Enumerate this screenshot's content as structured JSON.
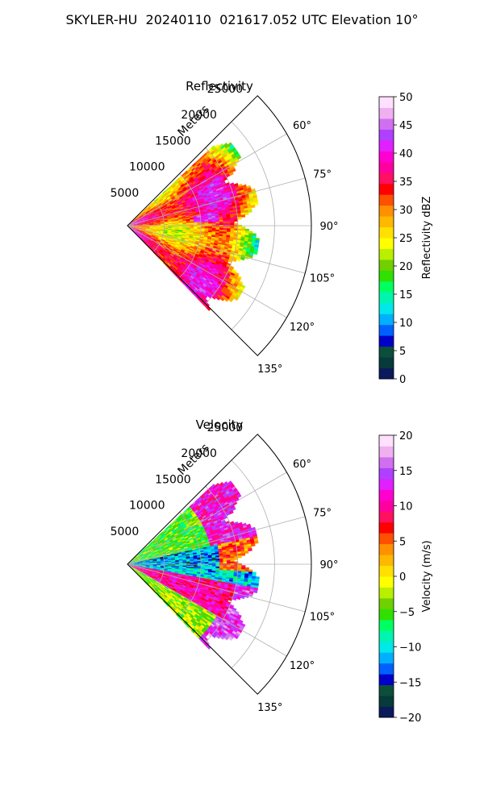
{
  "page": {
    "title": "SKYLER-HU  20240110  021617.052 UTC Elevation 10°"
  },
  "chart_data": [
    {
      "type": "heatmap",
      "subtype": "polar-sector",
      "title": "Reflectivity",
      "radial_label": "Meters",
      "r_ticks": [
        5000,
        10000,
        15000,
        20000,
        25000
      ],
      "theta_ticks": [
        60,
        75,
        90,
        105,
        120,
        135
      ],
      "theta_tick_labels": [
        "60°",
        "75°",
        "90°",
        "105°",
        "120°",
        "135°"
      ],
      "theta_range_deg": [
        45,
        135
      ],
      "r_max": 25000,
      "grid": true,
      "colorbar": {
        "label": "Reflectivity dBZ",
        "min": 0,
        "max": 50,
        "ticks": [
          0,
          5,
          10,
          15,
          20,
          25,
          30,
          35,
          40,
          45,
          50
        ],
        "tick_labels": [
          "0",
          "5",
          "10",
          "15",
          "20",
          "25",
          "30",
          "35",
          "40",
          "45",
          "50"
        ],
        "colors": [
          "#0a1a5c",
          "#073a3a",
          "#0b4f3a",
          "#0000c8",
          "#0060ff",
          "#00b0ff",
          "#00e8e8",
          "#00f5b0",
          "#00ff60",
          "#30e000",
          "#70d000",
          "#b8f000",
          "#ffff00",
          "#ffe000",
          "#ffb800",
          "#ff9000",
          "#ff5000",
          "#ff0000",
          "#ff1060",
          "#ff00a0",
          "#ff00d0",
          "#e020ff",
          "#b040ff",
          "#d070f0",
          "#f0b0f0",
          "#ffe0ff"
        ]
      },
      "echo_coverage": {
        "azimuth_range_deg": [
          47,
          136
        ],
        "max_range_m": 18000,
        "dominant_values": [
          25,
          30,
          35,
          38
        ]
      }
    },
    {
      "type": "heatmap",
      "subtype": "polar-sector",
      "title": "Velocity",
      "radial_label": "Meters",
      "r_ticks": [
        5000,
        10000,
        15000,
        20000,
        25000
      ],
      "theta_ticks": [
        60,
        75,
        90,
        105,
        120,
        135
      ],
      "theta_tick_labels": [
        "60°",
        "75°",
        "90°",
        "105°",
        "120°",
        "135°"
      ],
      "theta_range_deg": [
        45,
        135
      ],
      "r_max": 25000,
      "grid": true,
      "colorbar": {
        "label": "Velocity (m/s)",
        "min": -20,
        "max": 20,
        "ticks": [
          -20,
          -15,
          -10,
          -5,
          0,
          5,
          10,
          15,
          20
        ],
        "tick_labels": [
          "−20",
          "−15",
          "−10",
          "−5",
          "0",
          "5",
          "10",
          "15",
          "20"
        ],
        "colors": [
          "#0a1a5c",
          "#073a3a",
          "#0b4f3a",
          "#0000c8",
          "#0060ff",
          "#00b0ff",
          "#00e8e8",
          "#00f5b0",
          "#00ff60",
          "#30e000",
          "#70d000",
          "#b8f000",
          "#ffff00",
          "#ffe000",
          "#ffb800",
          "#ff9000",
          "#ff5000",
          "#ff0000",
          "#ff1060",
          "#ff00a0",
          "#ff00d0",
          "#e020ff",
          "#b040ff",
          "#d070f0",
          "#f0b0f0",
          "#ffe0ff"
        ]
      },
      "echo_coverage": {
        "azimuth_range_deg": [
          47,
          136
        ],
        "max_range_m": 18000,
        "dominant_values": [
          -5,
          -12,
          8,
          12
        ]
      }
    }
  ]
}
